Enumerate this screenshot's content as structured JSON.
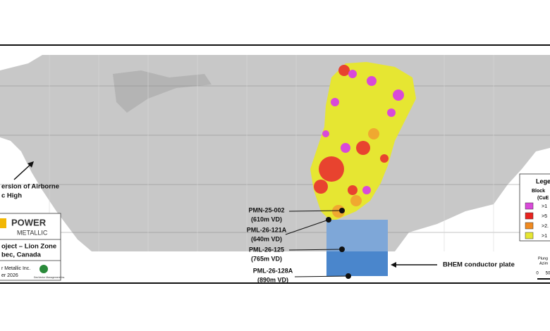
{
  "annotation": {
    "lines": [
      "ersion of Airborne",
      "c High"
    ]
  },
  "logo": {
    "word1": "POWER",
    "word2": "METALLIC",
    "project": [
      "oject – Lion Zone",
      "bec, Canada"
    ],
    "credit": [
      "r Metallic Inc.",
      "er 2026"
    ],
    "partner": "GeoVector Management Inc."
  },
  "drillholes": [
    {
      "name": "PMN-25-002",
      "depth": "(610m VD)"
    },
    {
      "name": "PML-26-121A",
      "depth": "(640m VD)"
    },
    {
      "name": "PML-26-125",
      "depth": "(765m VD)"
    },
    {
      "name": "PML-26-128A",
      "depth": "(890m VD)"
    }
  ],
  "plate_label": "BHEM conductor plate",
  "legend": {
    "title": "Lege",
    "subtitle": [
      "Block",
      "(CuE"
    ],
    "items": [
      ">1",
      ">5",
      ">2.",
      ">1"
    ]
  },
  "scale": {
    "lines": [
      "Plung",
      "Azim"
    ],
    "ticks": [
      "0",
      "50"
    ]
  }
}
